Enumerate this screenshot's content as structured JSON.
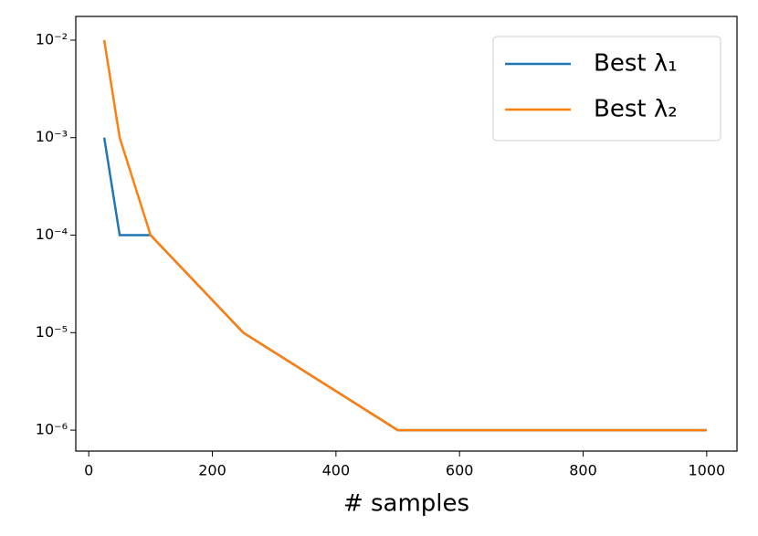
{
  "chart_data": {
    "type": "line",
    "x_label": "# samples",
    "x": [
      25,
      50,
      100,
      250,
      500,
      1000
    ],
    "series": [
      {
        "name": "Best λ₁",
        "color": "#1f77b4",
        "values": [
          0.001,
          0.0001,
          0.0001,
          1e-05,
          1e-06,
          1e-06
        ]
      },
      {
        "name": "Best λ₂",
        "color": "#ff7f0e",
        "values": [
          0.01,
          0.001,
          0.0001,
          1e-05,
          1e-06,
          1e-06
        ]
      }
    ],
    "xlim": [
      -21,
      1049
    ],
    "xticks": [
      0,
      200,
      400,
      600,
      800,
      1000
    ],
    "ylim": [
      6.1e-07,
      0.0175
    ],
    "yticks": [
      {
        "value": 0.01,
        "label": "10⁻²"
      },
      {
        "value": 0.001,
        "label": "10⁻³"
      },
      {
        "value": 0.0001,
        "label": "10⁻⁴"
      },
      {
        "value": 1e-05,
        "label": "10⁻⁵"
      },
      {
        "value": 1e-06,
        "label": "10⁻⁶"
      }
    ],
    "y_scale": "log",
    "grid": false,
    "legend": "upper right"
  }
}
